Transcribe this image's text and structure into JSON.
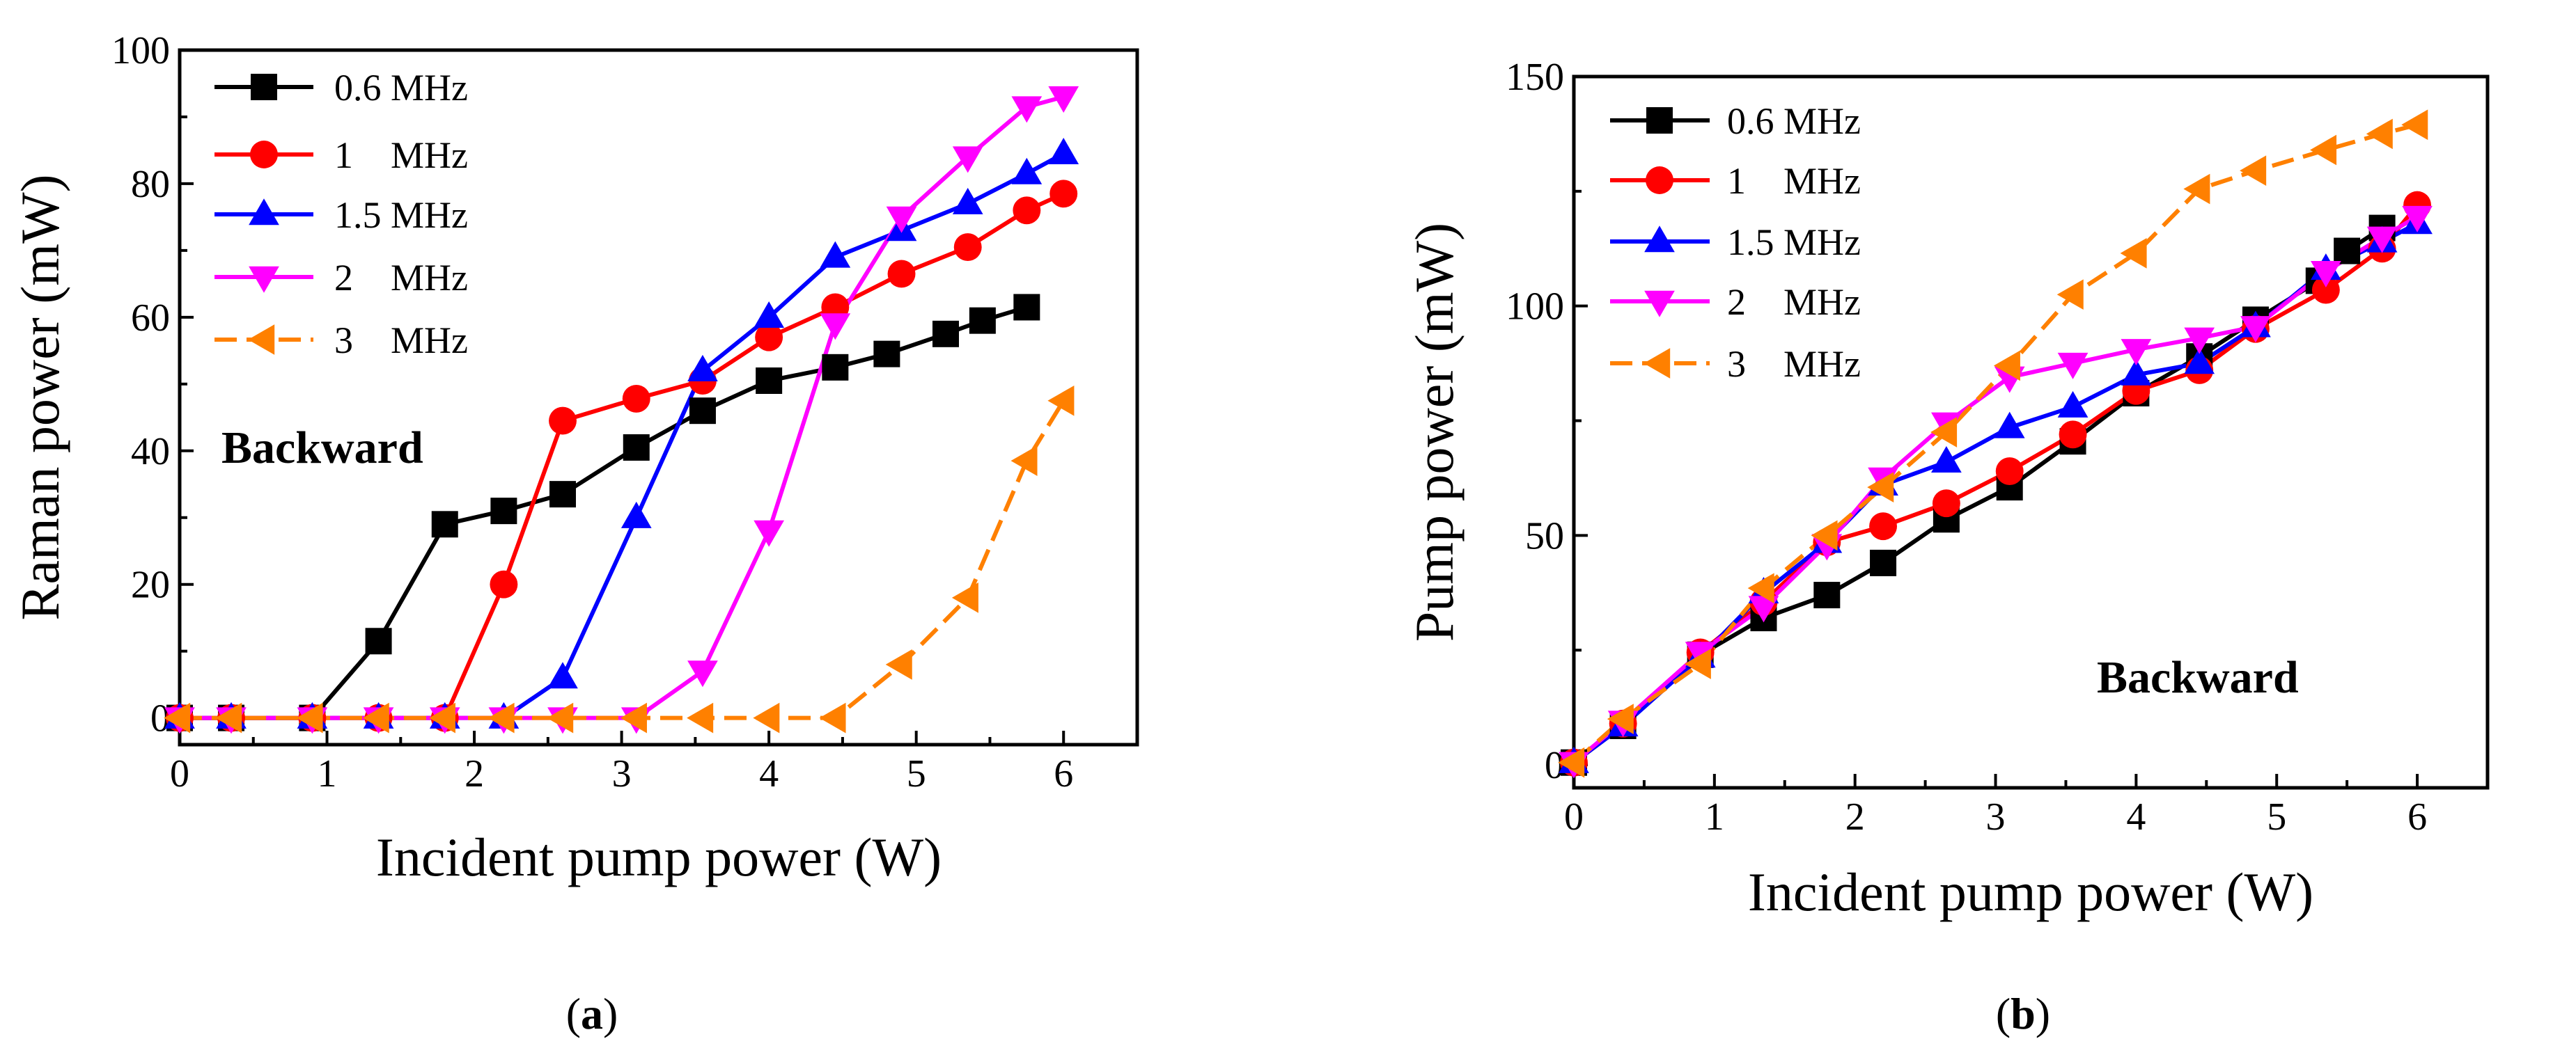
{
  "chart_data": [
    {
      "type": "line",
      "panel": "a",
      "panel_label": "a",
      "annotation": "Backward",
      "xlabel": "Incident pump power (W)",
      "ylabel": "Raman power (mW)",
      "xlim": [
        0,
        6.5
      ],
      "ylim": [
        -4,
        100
      ],
      "xticks": [
        0,
        1,
        2,
        3,
        4,
        5,
        6
      ],
      "yticks": [
        0,
        20,
        40,
        60,
        80,
        100
      ],
      "legend_position": "top-left",
      "series": [
        {
          "name": "0.6 MHz",
          "color": "#000000",
          "marker": "square",
          "dash": "solid",
          "x": [
            0,
            0.35,
            0.9,
            1.35,
            1.8,
            2.2,
            2.6,
            3.1,
            3.55,
            4.0,
            4.45,
            4.8,
            5.2,
            5.45,
            5.75
          ],
          "y": [
            0,
            0,
            0,
            11.5,
            29,
            31,
            33.5,
            40.5,
            46,
            50.5,
            52.5,
            54.5,
            57.5,
            59.5,
            61.5
          ]
        },
        {
          "name": "1    MHz",
          "color": "#ff0000",
          "marker": "circle",
          "dash": "solid",
          "x": [
            0,
            0.35,
            0.9,
            1.35,
            1.8,
            2.2,
            2.6,
            3.1,
            3.55,
            4.0,
            4.45,
            4.9,
            5.35,
            5.75,
            6.0
          ],
          "y": [
            0,
            0,
            0,
            0,
            0,
            20,
            44.5,
            47.8,
            50.5,
            57,
            61.5,
            66.5,
            70.5,
            76,
            78.5
          ]
        },
        {
          "name": "1.5 MHz",
          "color": "#0000ff",
          "marker": "triangle-up",
          "dash": "solid",
          "x": [
            0,
            0.35,
            0.9,
            1.35,
            1.8,
            2.2,
            2.6,
            3.1,
            3.55,
            4.0,
            4.45,
            4.9,
            5.35,
            5.75,
            6.0
          ],
          "y": [
            0,
            0,
            0,
            0,
            0,
            0,
            6,
            30,
            52,
            60,
            69,
            73,
            77,
            81.5,
            84.5
          ]
        },
        {
          "name": "2    MHz",
          "color": "#ff00ff",
          "marker": "triangle-down",
          "dash": "solid",
          "x": [
            0,
            0.35,
            0.9,
            1.35,
            1.8,
            2.2,
            2.6,
            3.1,
            3.55,
            4.0,
            4.45,
            4.9,
            5.35,
            5.75,
            6.0
          ],
          "y": [
            0,
            0,
            0,
            0,
            0,
            0,
            0,
            0,
            7,
            28,
            59,
            75,
            84,
            91.5,
            93
          ]
        },
        {
          "name": "3    MHz",
          "color": "#ff8000",
          "marker": "triangle-left",
          "dash": "dashed",
          "x": [
            0,
            0.35,
            0.9,
            1.35,
            1.8,
            2.2,
            2.6,
            3.1,
            3.55,
            4.0,
            4.45,
            4.9,
            5.35,
            5.75,
            6.0
          ],
          "y": [
            0,
            0,
            0,
            0,
            0,
            0,
            0,
            0,
            0,
            0,
            0,
            8,
            18,
            38.5,
            47.5
          ]
        }
      ]
    },
    {
      "type": "line",
      "panel": "b",
      "panel_label": "b",
      "annotation": "Backward",
      "xlabel": "Incident pump power (W)",
      "ylabel": "Pump power (mW)",
      "xlim": [
        0,
        6.5
      ],
      "ylim": [
        -5,
        150
      ],
      "xticks": [
        0,
        1,
        2,
        3,
        4,
        5,
        6
      ],
      "yticks": [
        0,
        50,
        100,
        150
      ],
      "legend_position": "top-left",
      "series": [
        {
          "name": "0.6 MHz",
          "color": "#000000",
          "marker": "square",
          "dash": "solid",
          "x": [
            0,
            0.35,
            0.9,
            1.35,
            1.8,
            2.2,
            2.65,
            3.1,
            3.55,
            4.0,
            4.45,
            4.85,
            5.3,
            5.5,
            5.75
          ],
          "y": [
            0.5,
            8.5,
            24,
            32,
            37,
            44,
            53.5,
            60.5,
            70.5,
            81,
            89,
            97,
            105.5,
            112,
            117
          ]
        },
        {
          "name": "1    MHz",
          "color": "#ff0000",
          "marker": "circle",
          "dash": "solid",
          "x": [
            0,
            0.35,
            0.9,
            1.35,
            1.8,
            2.2,
            2.65,
            3.1,
            3.55,
            4.0,
            4.45,
            4.85,
            5.35,
            5.75,
            6.0
          ],
          "y": [
            0.5,
            9,
            24.5,
            35.5,
            48.5,
            52,
            57,
            64,
            72,
            81.5,
            86,
            95,
            103.5,
            112.5,
            122
          ]
        },
        {
          "name": "1.5 MHz",
          "color": "#0000ff",
          "marker": "triangle-up",
          "dash": "solid",
          "x": [
            0,
            0.35,
            0.9,
            1.35,
            1.8,
            2.2,
            2.65,
            3.1,
            3.55,
            4.0,
            4.45,
            4.85,
            5.35,
            5.75,
            6.0
          ],
          "y": [
            0.5,
            8.5,
            23.5,
            37.5,
            48.5,
            61,
            66,
            73.5,
            78,
            85,
            87.5,
            95.5,
            108,
            114,
            118
          ]
        },
        {
          "name": "2    MHz",
          "color": "#ff00ff",
          "marker": "triangle-down",
          "dash": "solid",
          "x": [
            0,
            0.35,
            0.9,
            1.35,
            1.8,
            2.2,
            2.65,
            3.1,
            3.55,
            4.0,
            4.45,
            4.85,
            5.35,
            5.75,
            6.0
          ],
          "y": [
            0.5,
            9.5,
            24.5,
            34.5,
            48,
            62.5,
            74.5,
            84.5,
            87.5,
            90.5,
            93,
            95.5,
            107.5,
            115,
            119.5
          ]
        },
        {
          "name": "3    MHz",
          "color": "#ff8000",
          "marker": "triangle-left",
          "dash": "dashed",
          "x": [
            0,
            0.35,
            0.9,
            1.35,
            1.8,
            2.2,
            2.65,
            3.1,
            3.55,
            4.0,
            4.45,
            4.85,
            5.35,
            5.75,
            6.0
          ],
          "y": [
            0.5,
            10,
            22,
            38.5,
            50,
            60.5,
            72.5,
            87,
            102.5,
            111.5,
            125.5,
            129.5,
            134,
            137.5,
            139.5
          ]
        }
      ]
    }
  ]
}
